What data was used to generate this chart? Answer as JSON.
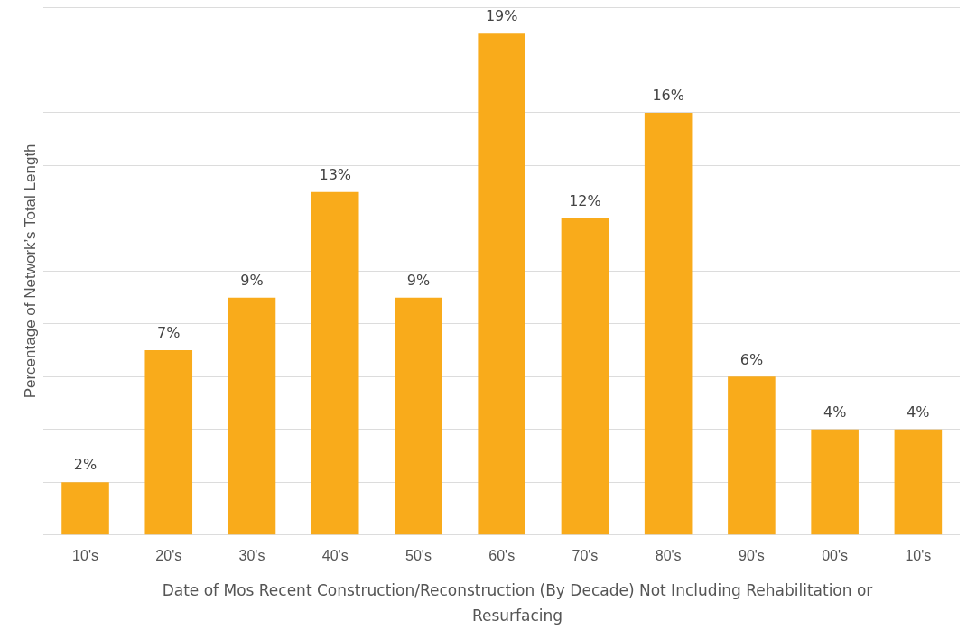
{
  "chart_data": {
    "type": "bar",
    "xlabel": "Date of Mos Recent Construction/Reconstruction (By Decade) Not Including Rehabilitation or Resurfacing",
    "ylabel": "Percentage of Network’s Total Length",
    "categories": [
      "10's",
      "20's",
      "30's",
      "40's",
      "50's",
      "60's",
      "70's",
      "80's",
      "90's",
      "00's",
      "10's"
    ],
    "values": [
      2,
      7,
      9,
      13,
      9,
      19,
      12,
      16,
      6,
      4,
      4
    ],
    "value_labels": [
      "2%",
      "7%",
      "9%",
      "13%",
      "9%",
      "19%",
      "12%",
      "16%",
      "6%",
      "4%",
      "4%"
    ],
    "color": "#f9ab1b",
    "ylim": [
      0,
      20
    ],
    "yticks": [
      0,
      2,
      4,
      6,
      8,
      10,
      12,
      14,
      16,
      18,
      20
    ],
    "grid": "y",
    "tick_labels": "x",
    "legend": false
  }
}
